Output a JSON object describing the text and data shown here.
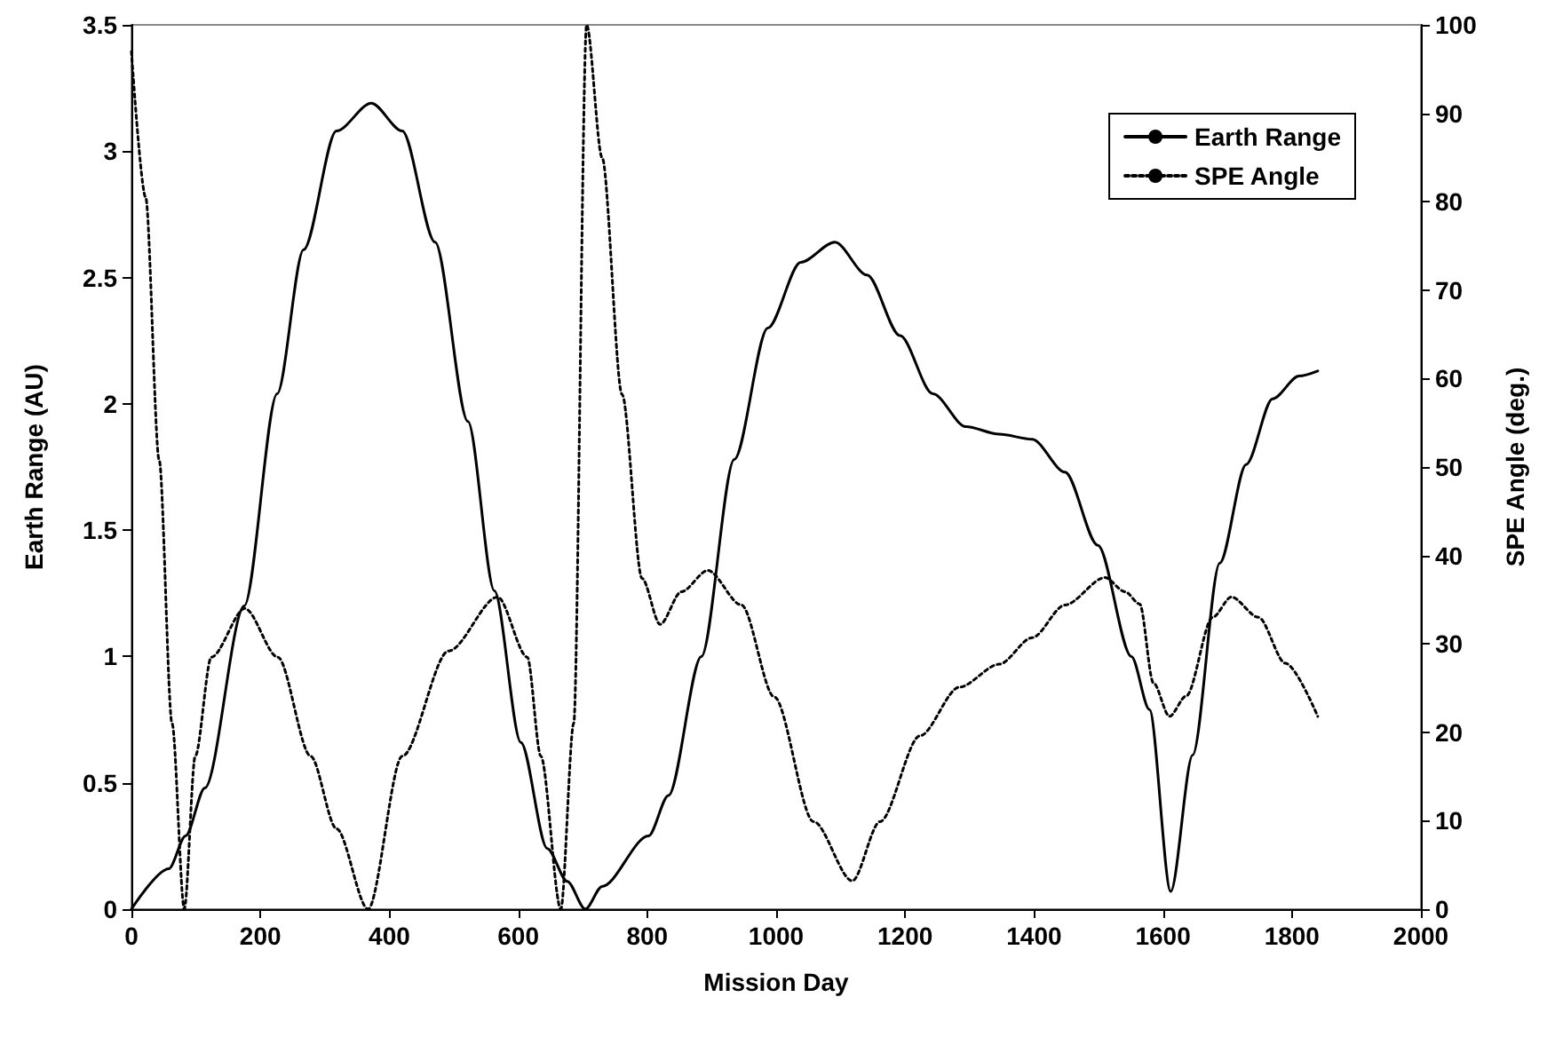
{
  "chart_data": {
    "type": "line",
    "xlabel": "Mission Day",
    "ylabel": "Earth Range (AU)",
    "y2label": "SPE Angle (deg.)",
    "xlim": [
      0,
      2000
    ],
    "xticks": [
      0,
      200,
      400,
      600,
      800,
      1000,
      1200,
      1400,
      1600,
      1800,
      2000
    ],
    "ylim": [
      0,
      3.5
    ],
    "yticks": [
      0,
      0.5,
      1,
      1.5,
      2,
      2.5,
      3,
      3.5
    ],
    "y2lim": [
      0,
      100
    ],
    "y2ticks": [
      0,
      10,
      20,
      30,
      40,
      50,
      60,
      70,
      80,
      90,
      100
    ],
    "grid": false,
    "legend": "top right",
    "marker": "none",
    "series": [
      {
        "name": "Earth Range",
        "color": "#000000",
        "line_style": "solid",
        "x": [
          0,
          58,
          84,
          114,
          175,
          226,
          267,
          318,
          372,
          420,
          471,
          522,
          563,
          604,
          645,
          676,
          704,
          730,
          802,
          833,
          884,
          935,
          987,
          1038,
          1091,
          1141,
          1192,
          1243,
          1294,
          1346,
          1397,
          1448,
          1499,
          1551,
          1579,
          1612,
          1646,
          1688,
          1729,
          1770,
          1811,
          1840
        ],
        "values": [
          0,
          0.16,
          0.29,
          0.48,
          1.2,
          2.04,
          2.61,
          3.08,
          3.19,
          3.08,
          2.64,
          1.93,
          1.26,
          0.66,
          0.24,
          0.11,
          0,
          0.09,
          0.29,
          0.45,
          1.0,
          1.78,
          2.3,
          2.56,
          2.64,
          2.51,
          2.27,
          2.04,
          1.91,
          1.88,
          1.86,
          1.73,
          1.44,
          1.0,
          0.79,
          0.07,
          0.61,
          1.37,
          1.76,
          2.02,
          2.11,
          2.13
        ]
      },
      {
        "name": "SPE Angle",
        "color": "#000000",
        "line_style": "dotted",
        "axis": "y2",
        "x": [
          0,
          22,
          43,
          63,
          82,
          99,
          124,
          176,
          227,
          278,
          318,
          367,
          420,
          492,
          568,
          614,
          635,
          666,
          686,
          706,
          730,
          761,
          792,
          820,
          853,
          894,
          946,
          997,
          1058,
          1118,
          1161,
          1223,
          1284,
          1346,
          1397,
          1448,
          1510,
          1541,
          1564,
          1585,
          1610,
          1636,
          1677,
          1706,
          1748,
          1790,
          1840
        ],
        "values": [
          97,
          80.5,
          50.8,
          21,
          0,
          17.3,
          28.5,
          34,
          28.5,
          17.3,
          9.1,
          0,
          17.3,
          29.2,
          35.3,
          28.5,
          17.3,
          0,
          21,
          100,
          85,
          58.2,
          37.4,
          32.2,
          35.9,
          38.3,
          34.4,
          24,
          9.9,
          3.2,
          9.9,
          19.6,
          25.1,
          27.7,
          30.7,
          34.4,
          37.5,
          35.9,
          34.5,
          25.6,
          21.8,
          24.1,
          33,
          35.3,
          33,
          27.8,
          21.8
        ]
      }
    ]
  }
}
